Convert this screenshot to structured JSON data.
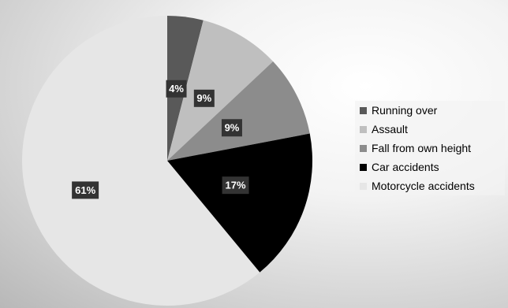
{
  "chart_data": {
    "type": "pie",
    "title": "",
    "legend_position": "right",
    "slices": [
      {
        "name": "Running over",
        "value": 4,
        "label": "4%",
        "color": "#595959"
      },
      {
        "name": "Assault",
        "value": 9,
        "label": "9%",
        "color": "#bfbfbf"
      },
      {
        "name": "Fall from own height",
        "value": 9,
        "label": "9%",
        "color": "#8c8c8c"
      },
      {
        "name": "Car accidents",
        "value": 17,
        "label": "17%",
        "color": "#000000"
      },
      {
        "name": "Motorcycle accidents",
        "value": 61,
        "label": "61%",
        "color": "#e6e6e6"
      }
    ]
  }
}
